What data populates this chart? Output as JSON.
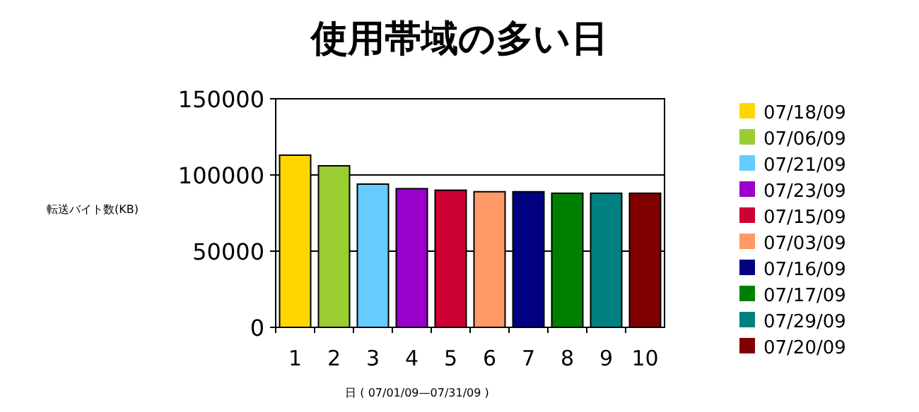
{
  "chart_data": {
    "type": "bar",
    "title": "使用帯域の多い日",
    "xlabel": "日 ( 07/01/09—07/31/09 )",
    "ylabel": "転送バイト数(KB)",
    "categories": [
      "1",
      "2",
      "3",
      "4",
      "5",
      "6",
      "7",
      "8",
      "9",
      "10"
    ],
    "series": [
      {
        "name": "07/18/09",
        "color": "#ffd700",
        "values": [
          113000,
          null,
          null,
          null,
          null,
          null,
          null,
          null,
          null,
          null
        ]
      },
      {
        "name": "07/06/09",
        "color": "#9acd32",
        "values": [
          null,
          106000,
          null,
          null,
          null,
          null,
          null,
          null,
          null,
          null
        ]
      },
      {
        "name": "07/21/09",
        "color": "#66ccff",
        "values": [
          null,
          null,
          94000,
          null,
          null,
          null,
          null,
          null,
          null,
          null
        ]
      },
      {
        "name": "07/23/09",
        "color": "#9900cc",
        "values": [
          null,
          null,
          null,
          91000,
          null,
          null,
          null,
          null,
          null,
          null
        ]
      },
      {
        "name": "07/15/09",
        "color": "#cc0033",
        "values": [
          null,
          null,
          null,
          null,
          90000,
          null,
          null,
          null,
          null,
          null
        ]
      },
      {
        "name": "07/03/09",
        "color": "#ff9966",
        "values": [
          null,
          null,
          null,
          null,
          null,
          89000,
          null,
          null,
          null,
          null
        ]
      },
      {
        "name": "07/16/09",
        "color": "#000080",
        "values": [
          null,
          null,
          null,
          null,
          null,
          null,
          89000,
          null,
          null,
          null
        ]
      },
      {
        "name": "07/17/09",
        "color": "#008000",
        "values": [
          null,
          null,
          null,
          null,
          null,
          null,
          null,
          88000,
          null,
          null
        ]
      },
      {
        "name": "07/29/09",
        "color": "#008080",
        "values": [
          null,
          null,
          null,
          null,
          null,
          null,
          null,
          null,
          88000,
          null
        ]
      },
      {
        "name": "07/20/09",
        "color": "#800000",
        "values": [
          null,
          null,
          null,
          null,
          null,
          null,
          null,
          null,
          null,
          88000
        ]
      }
    ],
    "ylim": [
      0,
      150000
    ],
    "yticks": [
      0,
      50000,
      100000,
      150000
    ],
    "grid": "y",
    "legend": "right"
  }
}
